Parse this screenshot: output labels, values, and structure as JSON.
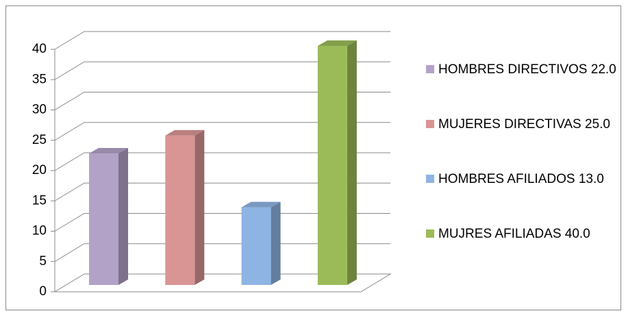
{
  "chart_data": {
    "type": "bar",
    "series": [
      {
        "name": "HOMBRES DIRECTIVOS 22.0",
        "color": "#b3a2c7",
        "values": [
          22
        ]
      },
      {
        "name": "MUJERES DIRECTIVAS 25.0",
        "color": "#d99594",
        "values": [
          25
        ]
      },
      {
        "name": "HOMBRES AFILIADOS 13.0",
        "color": "#8eb4e3",
        "values": [
          13
        ]
      },
      {
        "name": "MUJRES AFILIADAS 40.0",
        "color": "#9bbb59",
        "values": [
          40
        ]
      }
    ],
    "ylim": [
      0,
      40
    ],
    "yticks": [
      0,
      5,
      10,
      15,
      20,
      25,
      30,
      35,
      40
    ],
    "grid": true
  }
}
